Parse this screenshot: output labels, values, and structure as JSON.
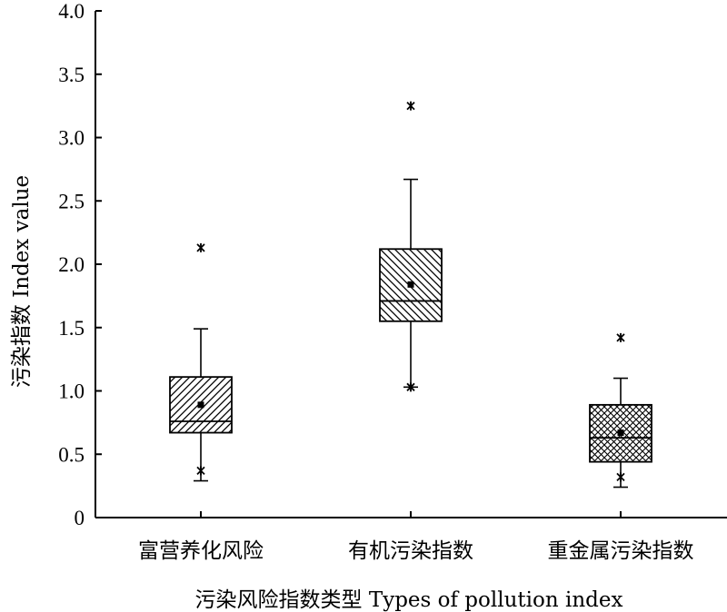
{
  "chart_data": {
    "type": "box",
    "xlabel": "污染风险指数类型 Types of pollution index",
    "ylabel": "污染指数 Index value",
    "ylim": [
      0,
      4.0
    ],
    "yticks": [
      "0",
      "0.5",
      "1.0",
      "1.5",
      "2.0",
      "2.5",
      "3.0",
      "3.5",
      "4.0"
    ],
    "yticks_values": [
      0,
      0.5,
      1.0,
      1.5,
      2.0,
      2.5,
      3.0,
      3.5,
      4.0
    ],
    "categories": [
      "富营养化风险",
      "有机污染指数",
      "重金属污染指数"
    ],
    "boxes": [
      {
        "category": "富营养化风险",
        "whisker_low": 0.29,
        "q1": 0.67,
        "median": 0.76,
        "q3": 1.11,
        "whisker_high": 1.49,
        "mean": 0.89,
        "outliers_high": [
          2.13
        ],
        "outliers_low": [
          0.37
        ],
        "pattern": "diagonal-up"
      },
      {
        "category": "有机污染指数",
        "whisker_low": 1.03,
        "q1": 1.55,
        "median": 1.71,
        "q3": 2.12,
        "whisker_high": 2.67,
        "mean": 1.84,
        "outliers_high": [
          3.25
        ],
        "outliers_low": [
          1.03
        ],
        "pattern": "diagonal-down"
      },
      {
        "category": "重金属污染指数",
        "whisker_low": 0.24,
        "q1": 0.44,
        "median": 0.63,
        "q3": 0.89,
        "whisker_high": 1.1,
        "mean": 0.67,
        "outliers_high": [
          1.42
        ],
        "outliers_low": [
          0.32
        ],
        "pattern": "crosshatch"
      }
    ],
    "grid": false,
    "legend": "none",
    "colors": {
      "line": "#000000",
      "fill": "#ffffff"
    }
  }
}
